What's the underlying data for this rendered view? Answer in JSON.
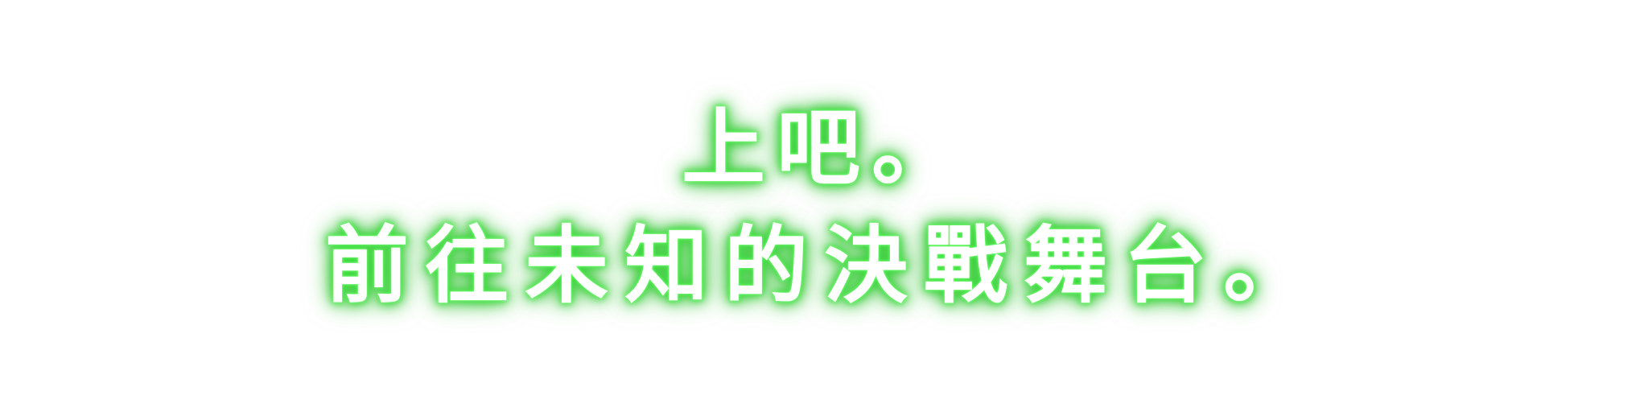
{
  "dialogue": {
    "line1": "上吧。",
    "line2": "前往未知的決戰舞台。"
  },
  "colors": {
    "text": "#ffffff",
    "glow": "#3fdc3f",
    "background": "#ffffff"
  }
}
